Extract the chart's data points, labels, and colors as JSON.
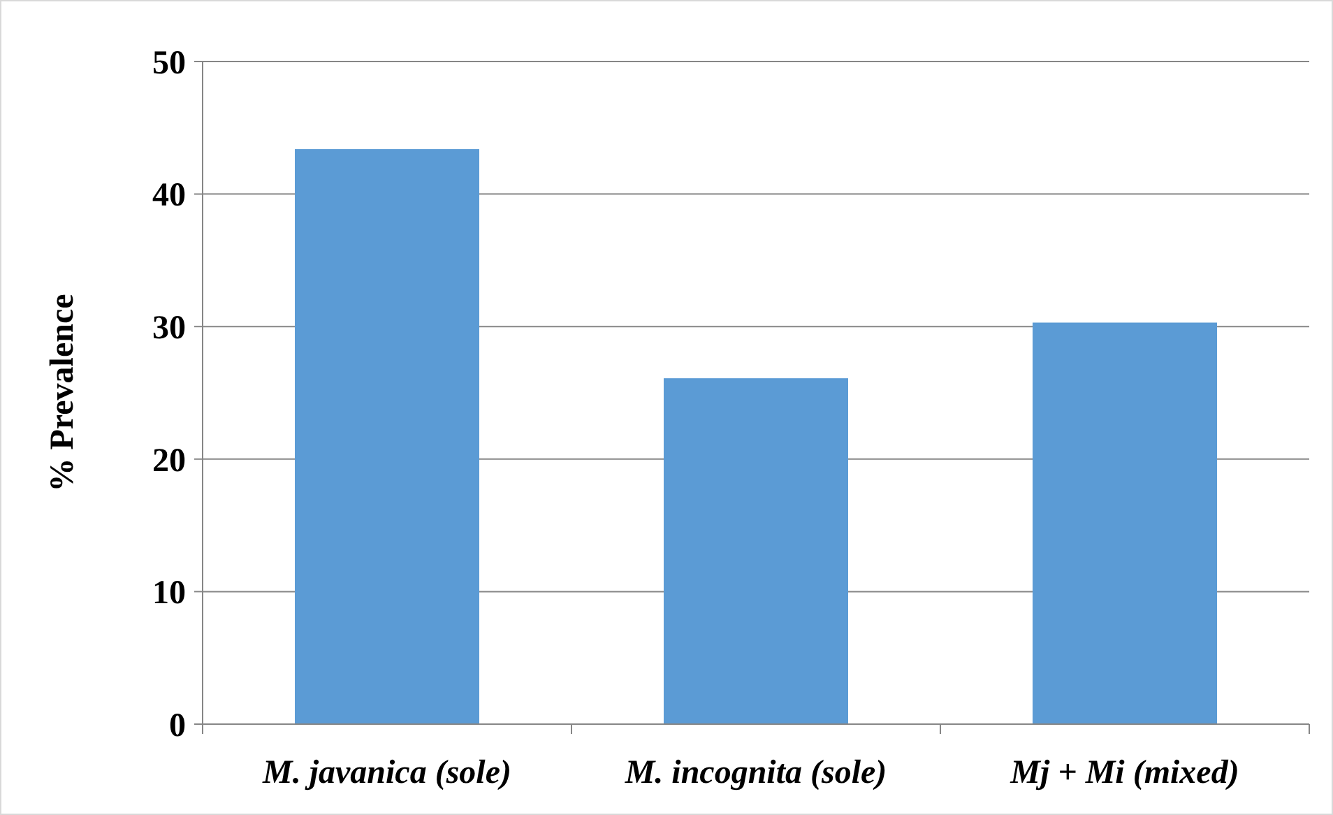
{
  "chart_data": {
    "type": "bar",
    "ylabel": "% Prevalence",
    "categories": [
      "M. javanica (sole)",
      "M. incognita (sole)",
      "Mj + Mi (mixed)"
    ],
    "values": [
      43.4,
      26.1,
      30.3
    ],
    "color": "#5b9bd5",
    "ylim": [
      0,
      50
    ],
    "yticks": [
      0,
      10,
      20,
      30,
      40,
      50
    ],
    "grid": "y"
  }
}
